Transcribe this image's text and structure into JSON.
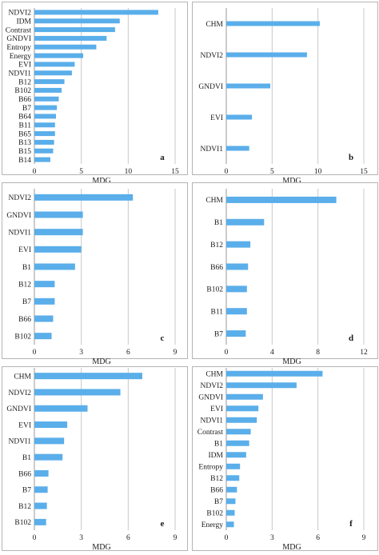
{
  "colors": {
    "bar": "#5aaeea",
    "frame": "#b4b4b4",
    "grid": "#c8c8c8"
  },
  "chart_data": [
    {
      "type": "bar",
      "orientation": "horizontal",
      "panel": "a",
      "xlabel": "MDG",
      "xlim": [
        0,
        15
      ],
      "xticks": [
        0,
        5,
        10,
        15
      ],
      "grid": true,
      "categories": [
        "NDVI2",
        "IDM",
        "Contrast",
        "GNDVI",
        "Entropy",
        "Energy",
        "EVI",
        "NDVI1",
        "B12",
        "B102",
        "B66",
        "B7",
        "B64",
        "B11",
        "B65",
        "B13",
        "B15",
        "B14"
      ],
      "values": [
        13.2,
        9.1,
        8.6,
        7.7,
        6.6,
        5.2,
        4.3,
        4.0,
        3.2,
        2.9,
        2.6,
        2.4,
        2.3,
        2.2,
        2.2,
        2.1,
        2.0,
        1.7
      ]
    },
    {
      "type": "bar",
      "orientation": "horizontal",
      "panel": "b",
      "xlabel": "MDG",
      "xlim": [
        0,
        15
      ],
      "xticks": [
        0,
        5,
        10,
        15
      ],
      "grid": true,
      "categories": [
        "CHM",
        "NDVI2",
        "GNDVI",
        "EVI",
        "NDVI1"
      ],
      "values": [
        10.2,
        8.8,
        4.8,
        2.8,
        2.5
      ]
    },
    {
      "type": "bar",
      "orientation": "horizontal",
      "panel": "c",
      "xlabel": "MDG",
      "xlim": [
        0,
        9
      ],
      "xticks": [
        0,
        3,
        6,
        9
      ],
      "grid": true,
      "categories": [
        "NDVI2",
        "GNDVI",
        "NDVI1",
        "EVI",
        "B1",
        "B12",
        "B7",
        "B66",
        "B102"
      ],
      "values": [
        6.3,
        3.1,
        3.1,
        3.0,
        2.6,
        1.3,
        1.3,
        1.2,
        1.1
      ]
    },
    {
      "type": "bar",
      "orientation": "horizontal",
      "panel": "d",
      "xlabel": "MDG",
      "xlim": [
        0,
        12
      ],
      "xticks": [
        0,
        4,
        8,
        12
      ],
      "grid": true,
      "categories": [
        "CHM",
        "B1",
        "B12",
        "B66",
        "B102",
        "B11",
        "B7"
      ],
      "values": [
        9.6,
        3.3,
        2.1,
        1.9,
        1.8,
        1.8,
        1.7
      ]
    },
    {
      "type": "bar",
      "orientation": "horizontal",
      "panel": "e",
      "xlabel": "MDG",
      "xlim": [
        0,
        9
      ],
      "xticks": [
        0,
        3,
        6,
        9
      ],
      "grid": true,
      "categories": [
        "CHM",
        "NDVI2",
        "GNDVI",
        "EVI",
        "NDVI1",
        "B1",
        "B66",
        "B7",
        "B12",
        "B102"
      ],
      "values": [
        6.9,
        5.5,
        3.4,
        2.1,
        1.9,
        1.8,
        0.9,
        0.85,
        0.8,
        0.75
      ]
    },
    {
      "type": "bar",
      "orientation": "horizontal",
      "panel": "f",
      "xlabel": "MDG",
      "xlim": [
        0,
        9
      ],
      "xticks": [
        0,
        3,
        6,
        9
      ],
      "grid": true,
      "categories": [
        "CHM",
        "NDVI2",
        "GNDVI",
        "EVI",
        "NDVI1",
        "Contrast",
        "B1",
        "IDM",
        "Entropy",
        "B12",
        "B66",
        "B7",
        "B102",
        "Energy"
      ],
      "values": [
        6.3,
        4.6,
        2.4,
        2.1,
        2.0,
        1.6,
        1.5,
        1.3,
        0.9,
        0.85,
        0.7,
        0.6,
        0.55,
        0.5
      ]
    }
  ]
}
